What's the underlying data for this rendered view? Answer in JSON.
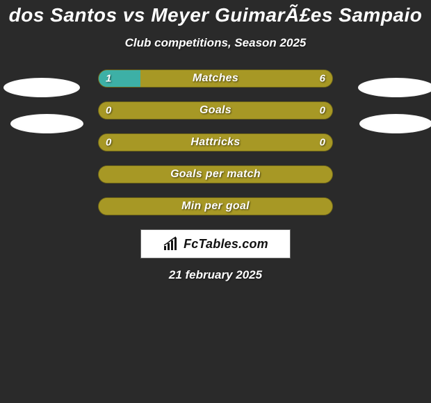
{
  "title": "dos Santos vs Meyer GuimarÃ£es Sampaio",
  "subtitle": "Club competitions, Season 2025",
  "date": "21 february 2025",
  "logo_text": "FcTables.com",
  "background_color": "#2a2a2a",
  "accent_color": "#a79825",
  "teal_color": "#3db0a6",
  "stats": [
    {
      "label": "Matches",
      "left_value": "1",
      "right_value": "6",
      "left_color": "#3db0a6",
      "right_color": "#a79825",
      "left_pct": 18,
      "right_pct": 82
    },
    {
      "label": "Goals",
      "left_value": "0",
      "right_value": "0",
      "left_color": "#a79825",
      "right_color": "#a79825",
      "left_pct": 50,
      "right_pct": 50
    },
    {
      "label": "Hattricks",
      "left_value": "0",
      "right_value": "0",
      "left_color": "#a79825",
      "right_color": "#a79825",
      "left_pct": 50,
      "right_pct": 50
    },
    {
      "label": "Goals per match",
      "left_value": "",
      "right_value": "",
      "left_color": "#a79825",
      "right_color": "#a79825",
      "left_pct": 50,
      "right_pct": 50
    },
    {
      "label": "Min per goal",
      "left_value": "",
      "right_value": "",
      "left_color": "#a79825",
      "right_color": "#a79825",
      "left_pct": 50,
      "right_pct": 50
    }
  ]
}
